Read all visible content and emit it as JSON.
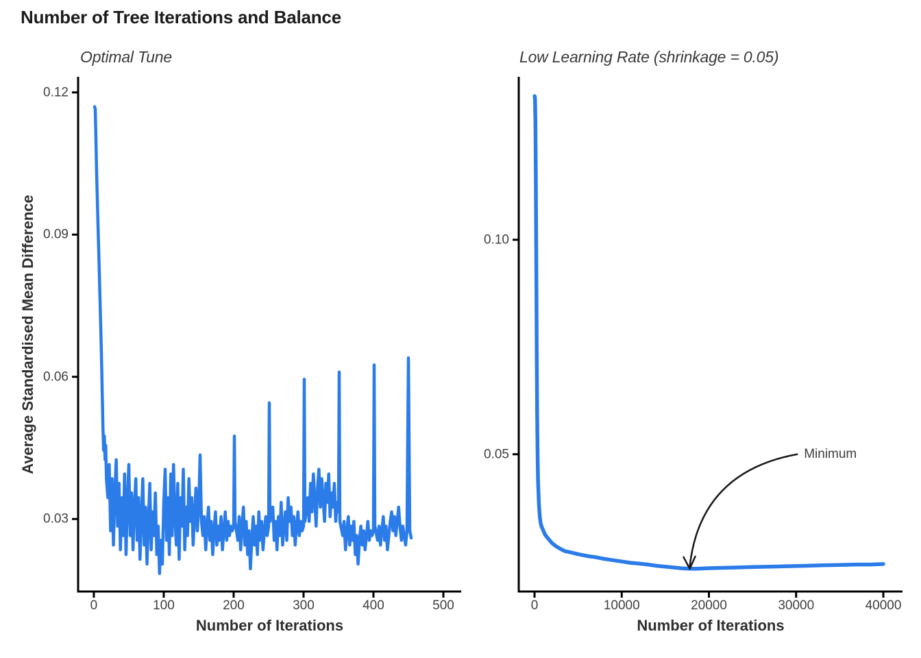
{
  "page": {
    "title": "Number of Tree Iterations and Balance",
    "background": "#ffffff"
  },
  "colors": {
    "line": "#2b7ce9",
    "axis": "#000000",
    "title_text": "#1c1c1c",
    "subtitle_text": "#3a3a3a",
    "axis_title_text": "#2e2e2e",
    "tick_text": "#3f3f3f",
    "annotation": "#1a1a1a"
  },
  "chart_data": [
    {
      "type": "line",
      "title": "Optimal Tune",
      "xlabel": "Number of Iterations",
      "ylabel": "Average Standardised Mean Difference",
      "legend": "none",
      "grid": false,
      "xlim": [
        -22.5,
        525.5
      ],
      "ylim": [
        0.0147,
        0.1233
      ],
      "x_ticks": [
        {
          "label": "0",
          "value": 0
        },
        {
          "label": "100",
          "value": 100
        },
        {
          "label": "200",
          "value": 200
        },
        {
          "label": "300",
          "value": 300
        },
        {
          "label": "400",
          "value": 400
        },
        {
          "label": "500",
          "value": 500
        }
      ],
      "y_ticks": [
        {
          "label": "0.12",
          "value": 0.12
        },
        {
          "label": "0.09",
          "value": 0.09
        },
        {
          "label": "0.06",
          "value": 0.06
        },
        {
          "label": "0.03",
          "value": 0.03
        }
      ],
      "points": [
        [
          1,
          0.117
        ],
        [
          2,
          0.1165
        ],
        [
          3,
          0.11
        ],
        [
          4,
          0.103
        ],
        [
          5,
          0.097
        ],
        [
          6,
          0.0915
        ],
        [
          7,
          0.0865
        ],
        [
          8,
          0.081
        ],
        [
          9,
          0.0755
        ],
        [
          10,
          0.0695
        ],
        [
          11,
          0.0635
        ],
        [
          12,
          0.0565
        ],
        [
          13,
          0.0495
        ],
        [
          14,
          0.0445
        ],
        [
          15,
          0.0475
        ],
        [
          16,
          0.0425
        ],
        [
          17,
          0.0455
        ],
        [
          18,
          0.0385
        ],
        [
          20,
          0.0345
        ],
        [
          22,
          0.0415
        ],
        [
          24,
          0.0275
        ],
        [
          26,
          0.0385
        ],
        [
          28,
          0.0245
        ],
        [
          30,
          0.0355
        ],
        [
          32,
          0.0425
        ],
        [
          34,
          0.0285
        ],
        [
          36,
          0.0375
        ],
        [
          38,
          0.0235
        ],
        [
          40,
          0.0345
        ],
        [
          42,
          0.0265
        ],
        [
          44,
          0.0395
        ],
        [
          46,
          0.0225
        ],
        [
          48,
          0.0335
        ],
        [
          50,
          0.0415
        ],
        [
          52,
          0.0265
        ],
        [
          54,
          0.0355
        ],
        [
          56,
          0.0235
        ],
        [
          58,
          0.0325
        ],
        [
          60,
          0.0385
        ],
        [
          62,
          0.0255
        ],
        [
          64,
          0.0345
        ],
        [
          66,
          0.0215
        ],
        [
          68,
          0.0305
        ],
        [
          70,
          0.0385
        ],
        [
          72,
          0.0245
        ],
        [
          74,
          0.0325
        ],
        [
          76,
          0.0205
        ],
        [
          78,
          0.0295
        ],
        [
          80,
          0.0375
        ],
        [
          82,
          0.0235
        ],
        [
          84,
          0.0315
        ],
        [
          86,
          0.0265
        ],
        [
          88,
          0.0355
        ],
        [
          90,
          0.0225
        ],
        [
          92,
          0.0285
        ],
        [
          94,
          0.0185
        ],
        [
          96,
          0.0255
        ],
        [
          98,
          0.0205
        ],
        [
          100,
          0.0335
        ],
        [
          102,
          0.0405
        ],
        [
          104,
          0.0255
        ],
        [
          106,
          0.0345
        ],
        [
          108,
          0.0225
        ],
        [
          110,
          0.0395
        ],
        [
          112,
          0.0265
        ],
        [
          114,
          0.0415
        ],
        [
          116,
          0.0305
        ],
        [
          118,
          0.0245
        ],
        [
          120,
          0.0375
        ],
        [
          122,
          0.0215
        ],
        [
          124,
          0.0345
        ],
        [
          126,
          0.0285
        ],
        [
          128,
          0.0405
        ],
        [
          130,
          0.0235
        ],
        [
          132,
          0.0325
        ],
        [
          134,
          0.0265
        ],
        [
          136,
          0.0385
        ],
        [
          138,
          0.0295
        ],
        [
          140,
          0.0345
        ],
        [
          142,
          0.0245
        ],
        [
          144,
          0.0305
        ],
        [
          146,
          0.0365
        ],
        [
          148,
          0.0275
        ],
        [
          150,
          0.0325
        ],
        [
          152,
          0.0435
        ],
        [
          154,
          0.0295
        ],
        [
          156,
          0.0265
        ],
        [
          158,
          0.0305
        ],
        [
          160,
          0.0235
        ],
        [
          162,
          0.0285
        ],
        [
          164,
          0.0325
        ],
        [
          166,
          0.0255
        ],
        [
          168,
          0.0295
        ],
        [
          170,
          0.0225
        ],
        [
          172,
          0.0275
        ],
        [
          174,
          0.0315
        ],
        [
          176,
          0.0245
        ],
        [
          178,
          0.0285
        ],
        [
          180,
          0.0255
        ],
        [
          182,
          0.0305
        ],
        [
          184,
          0.0235
        ],
        [
          186,
          0.0275
        ],
        [
          188,
          0.0315
        ],
        [
          190,
          0.0255
        ],
        [
          192,
          0.0295
        ],
        [
          194,
          0.0265
        ],
        [
          196,
          0.0285
        ],
        [
          198,
          0.0275
        ],
        [
          200,
          0.0285
        ],
        [
          201,
          0.0475
        ],
        [
          202,
          0.0295
        ],
        [
          206,
          0.0255
        ],
        [
          208,
          0.0305
        ],
        [
          210,
          0.0235
        ],
        [
          212,
          0.0285
        ],
        [
          214,
          0.0325
        ],
        [
          216,
          0.0245
        ],
        [
          218,
          0.0295
        ],
        [
          220,
          0.0225
        ],
        [
          222,
          0.0275
        ],
        [
          224,
          0.0195
        ],
        [
          226,
          0.0255
        ],
        [
          228,
          0.0305
        ],
        [
          230,
          0.0245
        ],
        [
          232,
          0.0285
        ],
        [
          234,
          0.0225
        ],
        [
          236,
          0.0315
        ],
        [
          238,
          0.0255
        ],
        [
          240,
          0.0295
        ],
        [
          242,
          0.0235
        ],
        [
          244,
          0.0275
        ],
        [
          246,
          0.0305
        ],
        [
          248,
          0.0265
        ],
        [
          250,
          0.0285
        ],
        [
          251,
          0.0545
        ],
        [
          252,
          0.0295
        ],
        [
          256,
          0.0325
        ],
        [
          258,
          0.0255
        ],
        [
          260,
          0.0295
        ],
        [
          262,
          0.0235
        ],
        [
          264,
          0.0305
        ],
        [
          266,
          0.0265
        ],
        [
          268,
          0.0335
        ],
        [
          270,
          0.0245
        ],
        [
          272,
          0.0285
        ],
        [
          274,
          0.0315
        ],
        [
          276,
          0.0255
        ],
        [
          278,
          0.0345
        ],
        [
          280,
          0.0295
        ],
        [
          282,
          0.0325
        ],
        [
          284,
          0.0265
        ],
        [
          286,
          0.0305
        ],
        [
          288,
          0.0245
        ],
        [
          290,
          0.0285
        ],
        [
          292,
          0.0315
        ],
        [
          294,
          0.0265
        ],
        [
          296,
          0.0295
        ],
        [
          298,
          0.0275
        ],
        [
          300,
          0.0285
        ],
        [
          301,
          0.0595
        ],
        [
          302,
          0.0295
        ],
        [
          306,
          0.0345
        ],
        [
          308,
          0.0295
        ],
        [
          310,
          0.0375
        ],
        [
          312,
          0.0315
        ],
        [
          314,
          0.0395
        ],
        [
          316,
          0.0345
        ],
        [
          318,
          0.0285
        ],
        [
          320,
          0.0365
        ],
        [
          322,
          0.0405
        ],
        [
          324,
          0.0325
        ],
        [
          326,
          0.0385
        ],
        [
          328,
          0.0345
        ],
        [
          330,
          0.0295
        ],
        [
          332,
          0.0375
        ],
        [
          334,
          0.0335
        ],
        [
          336,
          0.0395
        ],
        [
          338,
          0.0305
        ],
        [
          340,
          0.0355
        ],
        [
          342,
          0.0325
        ],
        [
          344,
          0.0375
        ],
        [
          346,
          0.0295
        ],
        [
          348,
          0.0335
        ],
        [
          350,
          0.0315
        ],
        [
          351,
          0.061
        ],
        [
          352,
          0.0295
        ],
        [
          356,
          0.0265
        ],
        [
          358,
          0.0295
        ],
        [
          360,
          0.0235
        ],
        [
          362,
          0.0275
        ],
        [
          364,
          0.0305
        ],
        [
          366,
          0.0245
        ],
        [
          368,
          0.0285
        ],
        [
          370,
          0.0255
        ],
        [
          372,
          0.0295
        ],
        [
          374,
          0.0225
        ],
        [
          376,
          0.0265
        ],
        [
          378,
          0.0205
        ],
        [
          380,
          0.0255
        ],
        [
          382,
          0.0285
        ],
        [
          384,
          0.0245
        ],
        [
          386,
          0.0275
        ],
        [
          388,
          0.0235
        ],
        [
          390,
          0.0265
        ],
        [
          392,
          0.0295
        ],
        [
          394,
          0.0255
        ],
        [
          396,
          0.0275
        ],
        [
          398,
          0.0265
        ],
        [
          400,
          0.0275
        ],
        [
          401,
          0.0625
        ],
        [
          402,
          0.0285
        ],
        [
          406,
          0.0255
        ],
        [
          408,
          0.0285
        ],
        [
          410,
          0.0245
        ],
        [
          412,
          0.0275
        ],
        [
          414,
          0.0305
        ],
        [
          416,
          0.0255
        ],
        [
          418,
          0.0285
        ],
        [
          420,
          0.0235
        ],
        [
          422,
          0.0265
        ],
        [
          424,
          0.0295
        ],
        [
          426,
          0.0315
        ],
        [
          428,
          0.0275
        ],
        [
          430,
          0.0305
        ],
        [
          432,
          0.0265
        ],
        [
          434,
          0.0295
        ],
        [
          436,
          0.0325
        ],
        [
          438,
          0.0285
        ],
        [
          440,
          0.0255
        ],
        [
          442,
          0.0285
        ],
        [
          444,
          0.0265
        ],
        [
          446,
          0.0245
        ],
        [
          448,
          0.0275
        ],
        [
          450,
          0.064
        ],
        [
          452,
          0.0275
        ],
        [
          454,
          0.026
        ]
      ]
    },
    {
      "type": "line",
      "title": "Low Learning Rate (shrinkage = 0.05)",
      "xlabel": "Number of Iterations",
      "ylabel": "",
      "legend": "none",
      "grid": false,
      "xlim": [
        -1810,
        42200
      ],
      "ylim": [
        0.018,
        0.138
      ],
      "x_ticks": [
        {
          "label": "0",
          "value": 0
        },
        {
          "label": "10000",
          "value": 10000
        },
        {
          "label": "20000",
          "value": 20000
        },
        {
          "label": "30000",
          "value": 30000
        },
        {
          "label": "40000",
          "value": 40000
        }
      ],
      "y_ticks": [
        {
          "label": "0.10",
          "value": 0.1
        },
        {
          "label": "0.05",
          "value": 0.05
        }
      ],
      "annotation": {
        "text": "Minimum",
        "arrow_target_x": 17800,
        "arrow_target_y": 0.0233,
        "label_x": 30900,
        "label_y": 0.05
      },
      "points": [
        [
          10,
          0.1335
        ],
        [
          50,
          0.133
        ],
        [
          100,
          0.128
        ],
        [
          150,
          0.115
        ],
        [
          200,
          0.095
        ],
        [
          250,
          0.075
        ],
        [
          300,
          0.06
        ],
        [
          350,
          0.05
        ],
        [
          400,
          0.044
        ],
        [
          500,
          0.0385
        ],
        [
          600,
          0.0355
        ],
        [
          700,
          0.034
        ],
        [
          800,
          0.0332
        ],
        [
          1000,
          0.0322
        ],
        [
          1200,
          0.0313
        ],
        [
          1500,
          0.0305
        ],
        [
          2000,
          0.0293
        ],
        [
          2500,
          0.0285
        ],
        [
          3000,
          0.0279
        ],
        [
          3500,
          0.0274
        ],
        [
          4000,
          0.0272
        ],
        [
          5000,
          0.0267
        ],
        [
          6000,
          0.0263
        ],
        [
          7000,
          0.026
        ],
        [
          8000,
          0.0256
        ],
        [
          9000,
          0.0253
        ],
        [
          10000,
          0.025
        ],
        [
          11000,
          0.0247
        ],
        [
          12000,
          0.0245
        ],
        [
          13000,
          0.0243
        ],
        [
          14000,
          0.024
        ],
        [
          15000,
          0.0238
        ],
        [
          16000,
          0.0236
        ],
        [
          17000,
          0.0234
        ],
        [
          17800,
          0.0233
        ],
        [
          18500,
          0.0233
        ],
        [
          19500,
          0.0234
        ],
        [
          21000,
          0.0235
        ],
        [
          23000,
          0.0236
        ],
        [
          25000,
          0.0237
        ],
        [
          27000,
          0.0238
        ],
        [
          29000,
          0.0239
        ],
        [
          31000,
          0.024
        ],
        [
          33000,
          0.0241
        ],
        [
          35000,
          0.0242
        ],
        [
          37000,
          0.0243
        ],
        [
          38500,
          0.0243
        ],
        [
          40000,
          0.0244
        ]
      ]
    }
  ]
}
